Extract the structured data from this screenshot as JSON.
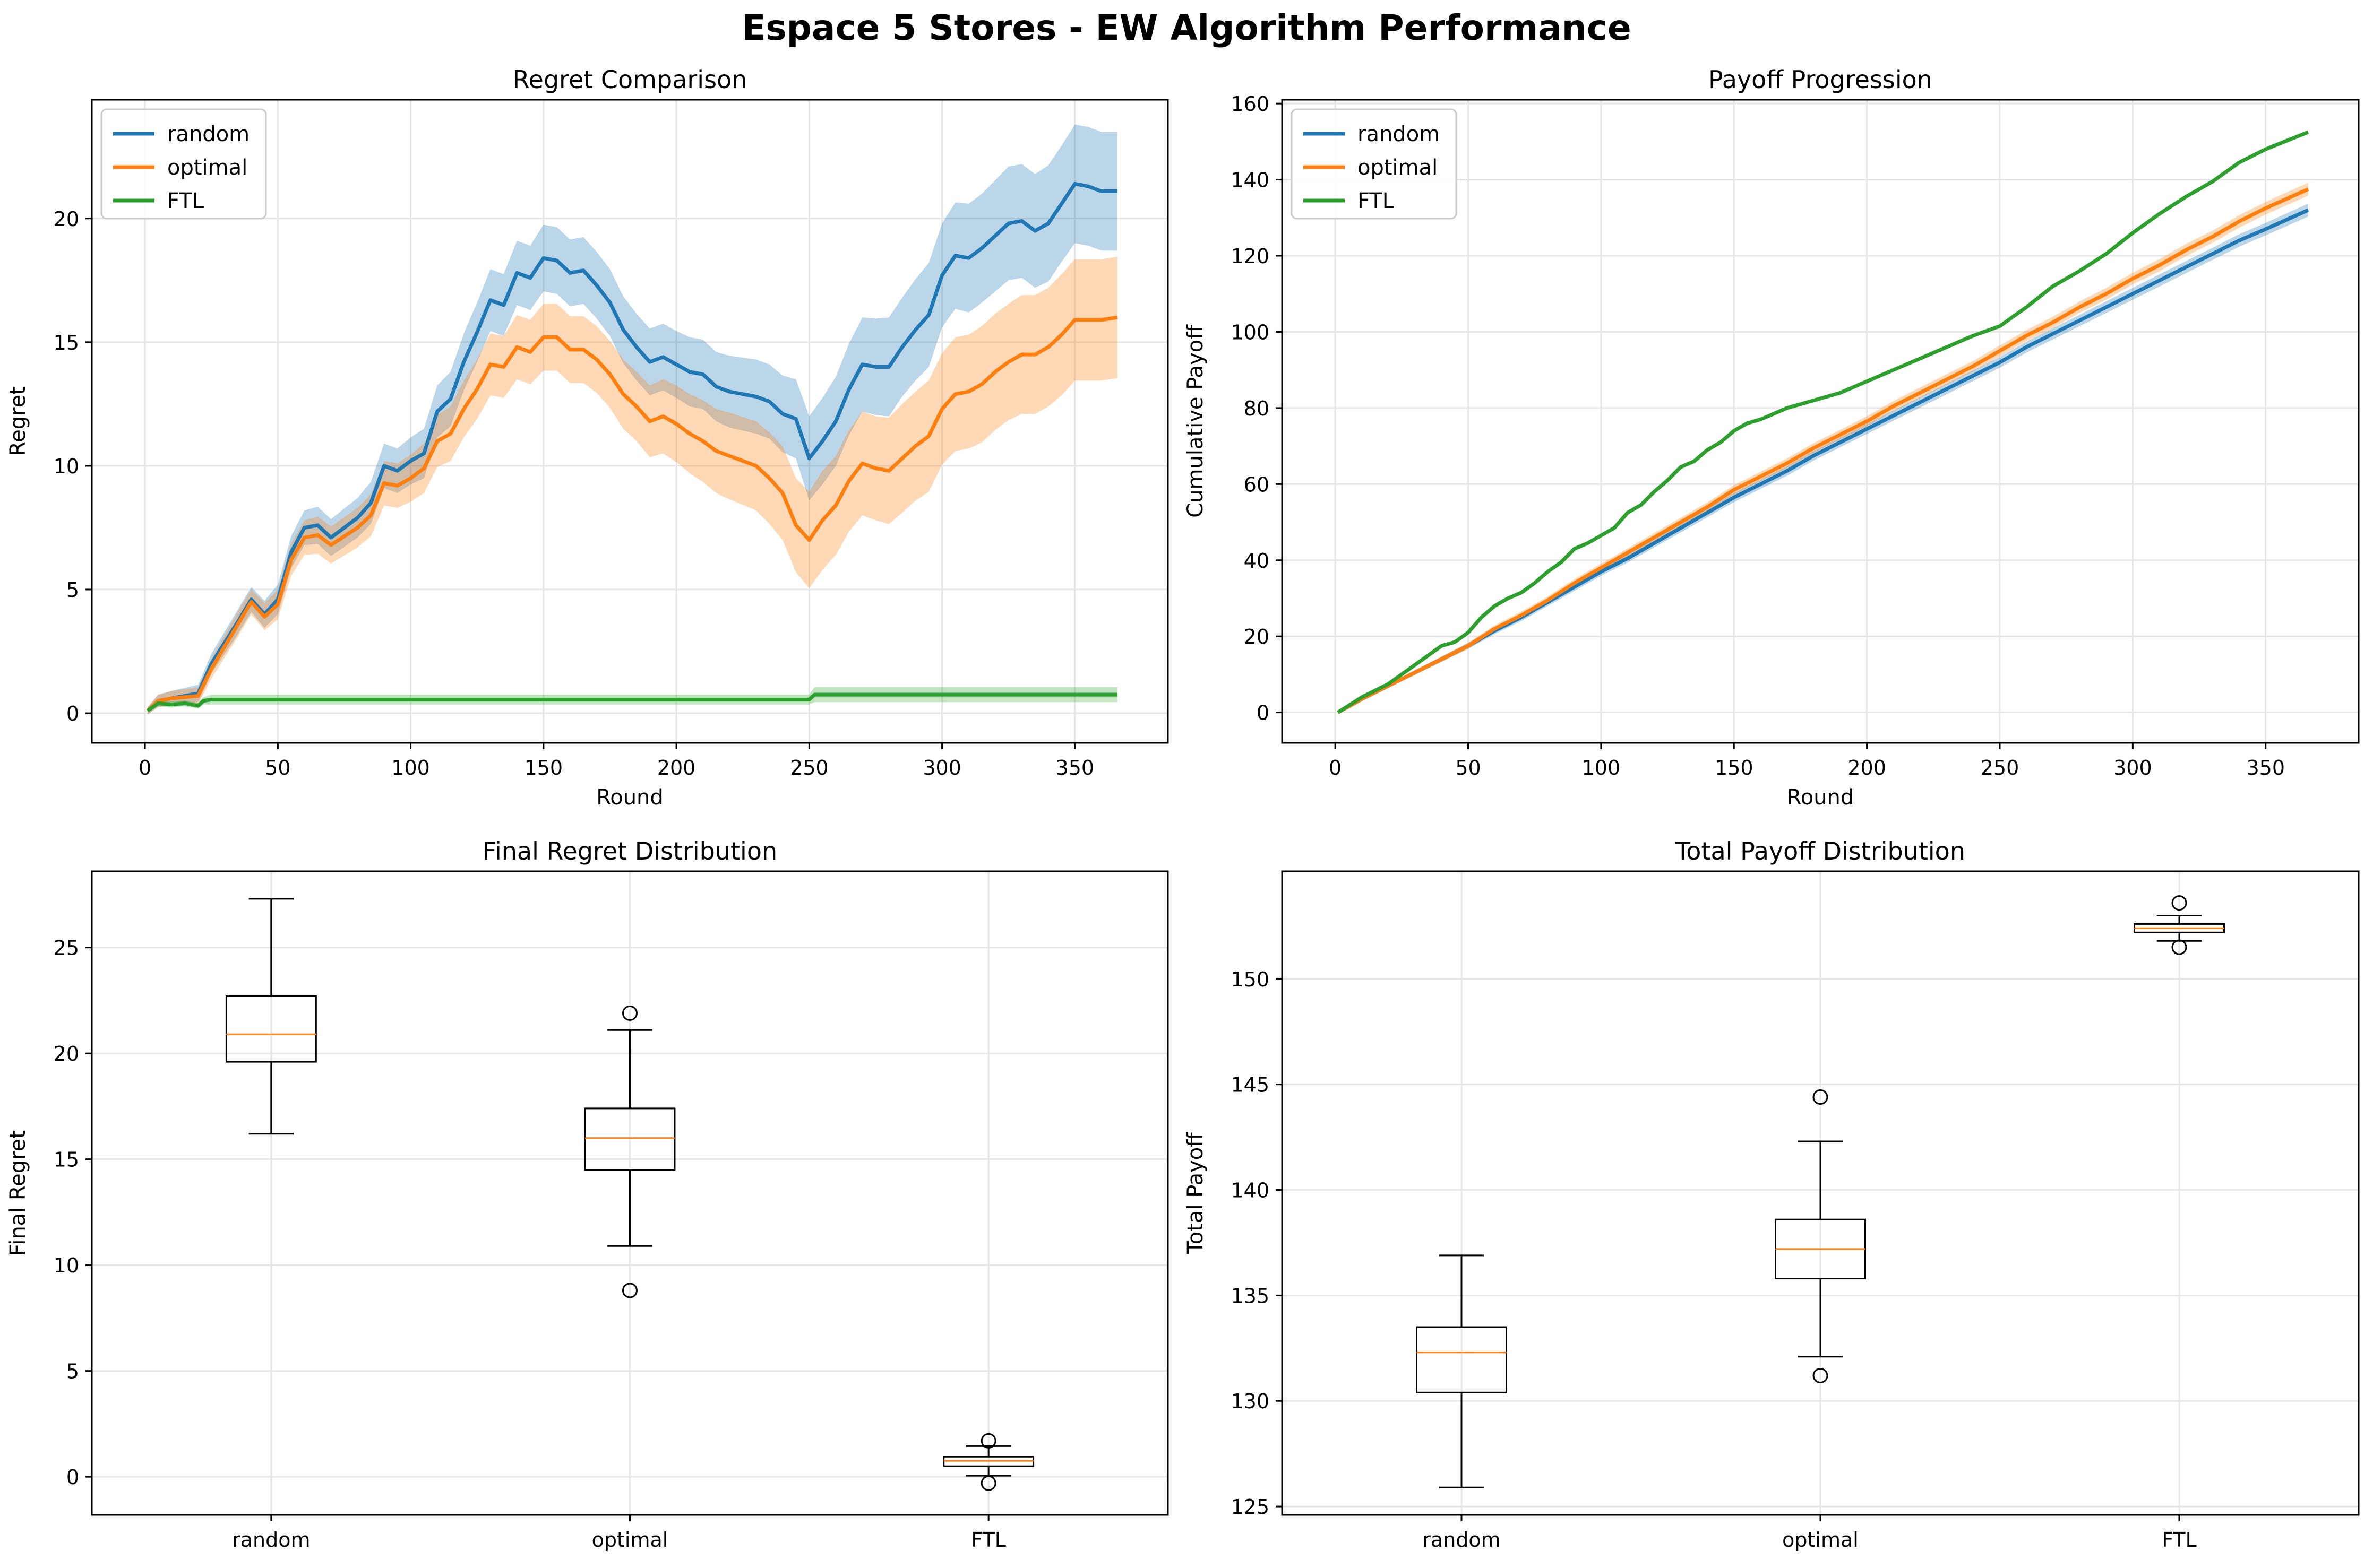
{
  "figure": {
    "title": "Espace 5 Stores - EW Algorithm Performance"
  },
  "colors": {
    "random": "#1f77b4",
    "optimal": "#ff7f0e",
    "FTL": "#2ca02c",
    "median": "#ff7f0e",
    "grid": "#e6e6e6"
  },
  "chart_data": [
    {
      "type": "line",
      "title": "Regret Comparison",
      "xlabel": "Round",
      "ylabel": "Regret",
      "xlim": [
        -20,
        385
      ],
      "ylim": [
        -1.2,
        24.8
      ],
      "xticks": [
        0,
        50,
        100,
        150,
        200,
        250,
        300,
        350
      ],
      "yticks": [
        0,
        5,
        10,
        15,
        20
      ],
      "grid": true,
      "legend": "top-left",
      "series": [
        {
          "name": "random",
          "color": "#1f77b4",
          "band": true,
          "x": [
            1,
            5,
            10,
            20,
            25,
            35,
            40,
            45,
            50,
            55,
            60,
            65,
            70,
            80,
            85,
            90,
            95,
            100,
            105,
            110,
            115,
            120,
            125,
            130,
            135,
            140,
            145,
            150,
            155,
            160,
            165,
            170,
            175,
            180,
            185,
            190,
            195,
            200,
            205,
            210,
            215,
            220,
            230,
            235,
            240,
            245,
            250,
            255,
            260,
            265,
            270,
            275,
            280,
            285,
            290,
            295,
            300,
            305,
            310,
            315,
            320,
            325,
            330,
            335,
            340,
            345,
            350,
            355,
            360,
            366
          ],
          "y": [
            0.1,
            0.5,
            0.6,
            0.8,
            2.0,
            3.7,
            4.6,
            4.0,
            4.6,
            6.5,
            7.5,
            7.6,
            7.1,
            7.9,
            8.5,
            10.0,
            9.8,
            10.2,
            10.5,
            12.2,
            12.7,
            14.2,
            15.4,
            16.7,
            16.5,
            17.8,
            17.6,
            18.4,
            18.3,
            17.8,
            17.9,
            17.3,
            16.6,
            15.5,
            14.8,
            14.2,
            14.4,
            14.1,
            13.8,
            13.7,
            13.2,
            13.0,
            12.8,
            12.6,
            12.1,
            11.9,
            10.3,
            11.0,
            11.8,
            13.1,
            14.1,
            14.0,
            14.0,
            14.8,
            15.5,
            16.1,
            17.7,
            18.5,
            18.4,
            18.8,
            19.3,
            19.8,
            19.9,
            19.5,
            19.8,
            20.6,
            21.4,
            21.3,
            21.1,
            21.1
          ],
          "band_width": [
            0.15,
            0.25,
            0.3,
            0.35,
            0.4,
            0.5,
            0.5,
            0.55,
            0.6,
            0.65,
            0.7,
            0.75,
            0.75,
            0.8,
            0.85,
            0.9,
            0.9,
            0.95,
            1.0,
            1.05,
            1.1,
            1.15,
            1.2,
            1.25,
            1.25,
            1.3,
            1.3,
            1.35,
            1.35,
            1.35,
            1.35,
            1.35,
            1.35,
            1.35,
            1.35,
            1.35,
            1.35,
            1.35,
            1.4,
            1.4,
            1.4,
            1.45,
            1.5,
            1.5,
            1.55,
            1.6,
            1.7,
            1.75,
            1.8,
            1.85,
            1.9,
            1.95,
            2.0,
            2.0,
            2.05,
            2.1,
            2.1,
            2.15,
            2.2,
            2.2,
            2.25,
            2.3,
            2.3,
            2.3,
            2.35,
            2.35,
            2.4,
            2.4,
            2.4,
            2.4
          ]
        },
        {
          "name": "optimal",
          "color": "#ff7f0e",
          "band": true,
          "x": [
            1,
            5,
            10,
            20,
            25,
            35,
            40,
            45,
            50,
            55,
            60,
            65,
            70,
            80,
            85,
            90,
            95,
            100,
            105,
            110,
            115,
            120,
            125,
            130,
            135,
            140,
            145,
            150,
            155,
            160,
            165,
            170,
            175,
            180,
            185,
            190,
            195,
            200,
            205,
            210,
            215,
            220,
            230,
            235,
            240,
            245,
            250,
            255,
            260,
            265,
            270,
            275,
            280,
            285,
            290,
            295,
            300,
            305,
            310,
            315,
            320,
            325,
            330,
            335,
            340,
            345,
            350,
            355,
            360,
            366
          ],
          "y": [
            0.1,
            0.5,
            0.6,
            0.7,
            1.8,
            3.6,
            4.5,
            3.9,
            4.4,
            6.2,
            7.1,
            7.2,
            6.8,
            7.5,
            8.0,
            9.3,
            9.2,
            9.5,
            9.9,
            11.0,
            11.3,
            12.3,
            13.1,
            14.1,
            14.0,
            14.8,
            14.6,
            15.2,
            15.2,
            14.7,
            14.7,
            14.3,
            13.7,
            12.9,
            12.4,
            11.8,
            12.0,
            11.7,
            11.3,
            11.0,
            10.6,
            10.4,
            10.0,
            9.5,
            8.9,
            7.6,
            7.0,
            7.8,
            8.4,
            9.4,
            10.1,
            9.9,
            9.8,
            10.3,
            10.8,
            11.2,
            12.3,
            12.9,
            13.0,
            13.3,
            13.8,
            14.2,
            14.5,
            14.5,
            14.8,
            15.3,
            15.9,
            15.9,
            15.9,
            16.0
          ],
          "band_width": [
            0.15,
            0.25,
            0.3,
            0.35,
            0.4,
            0.5,
            0.5,
            0.55,
            0.6,
            0.65,
            0.7,
            0.75,
            0.75,
            0.8,
            0.85,
            0.9,
            0.9,
            0.95,
            1.0,
            1.05,
            1.1,
            1.15,
            1.2,
            1.25,
            1.25,
            1.3,
            1.3,
            1.35,
            1.35,
            1.35,
            1.35,
            1.35,
            1.35,
            1.4,
            1.4,
            1.45,
            1.5,
            1.55,
            1.6,
            1.65,
            1.7,
            1.75,
            1.8,
            1.85,
            1.9,
            1.9,
            1.95,
            2.0,
            2.0,
            2.05,
            2.1,
            2.1,
            2.15,
            2.2,
            2.2,
            2.25,
            2.25,
            2.3,
            2.3,
            2.35,
            2.35,
            2.35,
            2.4,
            2.4,
            2.4,
            2.45,
            2.45,
            2.45,
            2.45,
            2.45
          ]
        },
        {
          "name": "FTL",
          "color": "#2ca02c",
          "band": true,
          "x": [
            1,
            5,
            10,
            15,
            20,
            22,
            25,
            250,
            252,
            255,
            366
          ],
          "y": [
            0.1,
            0.4,
            0.35,
            0.4,
            0.3,
            0.5,
            0.55,
            0.55,
            0.75,
            0.75,
            0.75
          ],
          "band_width": [
            0.05,
            0.1,
            0.12,
            0.12,
            0.12,
            0.15,
            0.2,
            0.2,
            0.3,
            0.3,
            0.3
          ]
        }
      ]
    },
    {
      "type": "line",
      "title": "Payoff Progression",
      "xlabel": "Round",
      "ylabel": "Cumulative Payoff",
      "xlim": [
        -20,
        385
      ],
      "ylim": [
        -8,
        161
      ],
      "xticks": [
        0,
        50,
        100,
        150,
        200,
        250,
        300,
        350
      ],
      "yticks": [
        0,
        20,
        40,
        60,
        80,
        100,
        120,
        140,
        160
      ],
      "grid": true,
      "legend": "top-left",
      "series": [
        {
          "name": "random",
          "color": "#1f77b4",
          "band": true,
          "x": [
            1,
            10,
            20,
            30,
            40,
            50,
            60,
            70,
            80,
            90,
            100,
            110,
            120,
            130,
            140,
            150,
            160,
            170,
            180,
            190,
            200,
            210,
            220,
            230,
            240,
            250,
            260,
            270,
            280,
            290,
            300,
            310,
            320,
            330,
            340,
            350,
            366
          ],
          "y": [
            0,
            3.5,
            7,
            10.5,
            14,
            17.5,
            21.5,
            25,
            29,
            33,
            37,
            40.5,
            44.5,
            48.5,
            52.5,
            56.5,
            60,
            63.5,
            67.5,
            71,
            74.5,
            78,
            81.5,
            85,
            88.5,
            92,
            96,
            99.5,
            103,
            106.5,
            110,
            113.5,
            117,
            120.5,
            124,
            127,
            132
          ],
          "band_width": [
            0.1,
            0.3,
            0.5,
            0.6,
            0.7,
            0.8,
            0.9,
            1.0,
            1.0,
            1.05,
            1.1,
            1.1,
            1.15,
            1.2,
            1.2,
            1.25,
            1.25,
            1.3,
            1.3,
            1.3,
            1.35,
            1.35,
            1.4,
            1.4,
            1.4,
            1.45,
            1.45,
            1.5,
            1.5,
            1.55,
            1.55,
            1.6,
            1.6,
            1.6,
            1.65,
            1.65,
            1.7
          ]
        },
        {
          "name": "optimal",
          "color": "#ff7f0e",
          "band": true,
          "x": [
            1,
            10,
            20,
            30,
            40,
            50,
            60,
            70,
            80,
            90,
            100,
            110,
            120,
            130,
            140,
            150,
            160,
            170,
            180,
            190,
            200,
            210,
            220,
            230,
            240,
            250,
            260,
            270,
            280,
            290,
            300,
            310,
            320,
            330,
            340,
            350,
            366
          ],
          "y": [
            0,
            3.5,
            7,
            10.5,
            14,
            17.5,
            22,
            25.5,
            29.5,
            34,
            38,
            42,
            46,
            50,
            54,
            58.5,
            62,
            65.5,
            69.5,
            73,
            76.5,
            80.5,
            84,
            87.5,
            91,
            95,
            99,
            102.5,
            106.5,
            110,
            114,
            117.5,
            121.5,
            125,
            129,
            132.5,
            137.5
          ],
          "band_width": [
            0.1,
            0.3,
            0.5,
            0.6,
            0.7,
            0.8,
            0.9,
            1.0,
            1.0,
            1.05,
            1.1,
            1.1,
            1.15,
            1.2,
            1.2,
            1.25,
            1.25,
            1.3,
            1.3,
            1.3,
            1.35,
            1.35,
            1.4,
            1.4,
            1.4,
            1.45,
            1.45,
            1.5,
            1.5,
            1.55,
            1.55,
            1.6,
            1.6,
            1.6,
            1.65,
            1.65,
            1.7
          ]
        },
        {
          "name": "FTL",
          "color": "#2ca02c",
          "band": false,
          "x": [
            1,
            10,
            20,
            25,
            30,
            35,
            40,
            45,
            50,
            55,
            60,
            65,
            70,
            75,
            80,
            85,
            90,
            95,
            100,
            105,
            110,
            115,
            120,
            125,
            130,
            135,
            140,
            145,
            150,
            155,
            160,
            170,
            180,
            190,
            200,
            210,
            220,
            230,
            240,
            250,
            260,
            270,
            280,
            290,
            300,
            310,
            320,
            330,
            340,
            350,
            366
          ],
          "y": [
            0,
            4,
            7.5,
            10,
            12.5,
            15,
            17.5,
            18.5,
            21,
            25,
            28,
            30,
            31.5,
            34,
            37,
            39.5,
            43,
            44.5,
            46.5,
            48.5,
            52.5,
            54.5,
            58,
            61,
            64.5,
            66,
            69,
            71,
            74,
            76,
            77,
            80,
            82,
            84,
            87,
            90,
            93,
            96,
            99,
            101.5,
            106.5,
            112,
            116,
            120.5,
            126,
            131,
            135.5,
            139.5,
            144.5,
            148,
            152.5
          ],
          "band_width": []
        }
      ]
    },
    {
      "type": "box",
      "title": "Final Regret Distribution",
      "xlabel": "",
      "ylabel": "Final Regret",
      "ylim": [
        -1.8,
        28.6
      ],
      "yticks": [
        0,
        5,
        10,
        15,
        20,
        25
      ],
      "grid": true,
      "categories": [
        "random",
        "optimal",
        "FTL"
      ],
      "boxes": [
        {
          "whisker_low": 16.2,
          "q1": 19.6,
          "median": 20.9,
          "q3": 22.7,
          "whisker_high": 27.3,
          "outliers": []
        },
        {
          "whisker_low": 10.9,
          "q1": 14.5,
          "median": 16.0,
          "q3": 17.4,
          "whisker_high": 21.1,
          "outliers": [
            21.9,
            8.8
          ]
        },
        {
          "whisker_low": 0.05,
          "q1": 0.5,
          "median": 0.75,
          "q3": 0.95,
          "whisker_high": 1.45,
          "outliers": [
            1.7,
            -0.3
          ]
        }
      ]
    },
    {
      "type": "box",
      "title": "Total Payoff Distribution",
      "xlabel": "",
      "ylabel": "Total Payoff",
      "ylim": [
        124.6,
        155.1
      ],
      "yticks": [
        125,
        130,
        135,
        140,
        145,
        150
      ],
      "grid": true,
      "categories": [
        "random",
        "optimal",
        "FTL"
      ],
      "boxes": [
        {
          "whisker_low": 125.9,
          "q1": 130.4,
          "median": 132.3,
          "q3": 133.5,
          "whisker_high": 136.9,
          "outliers": []
        },
        {
          "whisker_low": 132.1,
          "q1": 135.8,
          "median": 137.2,
          "q3": 138.6,
          "whisker_high": 142.3,
          "outliers": [
            144.4,
            131.2
          ]
        },
        {
          "whisker_low": 151.8,
          "q1": 152.2,
          "median": 152.4,
          "q3": 152.6,
          "whisker_high": 153.0,
          "outliers": [
            153.6,
            151.5
          ]
        }
      ]
    }
  ]
}
